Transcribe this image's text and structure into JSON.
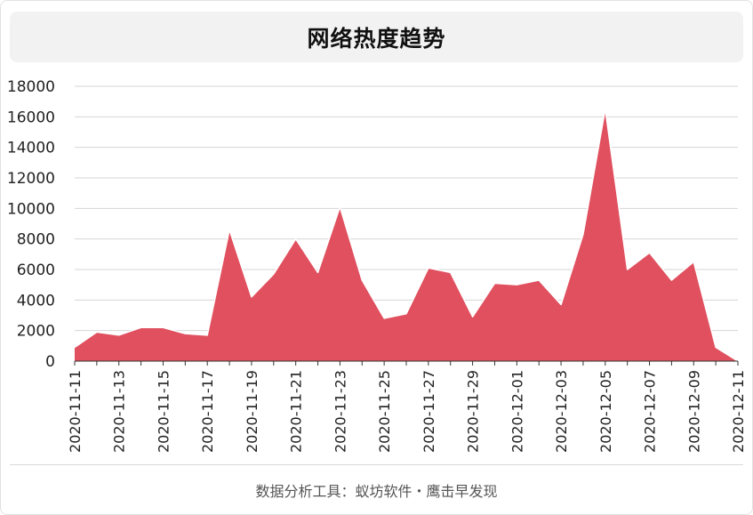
{
  "header": {
    "title": "网络热度趋势"
  },
  "footer": {
    "text": "数据分析工具：蚁坊软件・鹰击早发现"
  },
  "colors": {
    "area_fill": "#e0505f",
    "area_stroke": "#e0505f",
    "grid": "#d6d6d6",
    "axis_text": "#222222"
  },
  "chart_data": {
    "type": "area",
    "title": "网络热度趋势",
    "xlabel": "",
    "ylabel": "",
    "ylim": [
      0,
      18000
    ],
    "yticks": [
      0,
      2000,
      4000,
      6000,
      8000,
      10000,
      12000,
      14000,
      16000,
      18000
    ],
    "grid": true,
    "x": [
      "2020-11-11",
      "2020-11-12",
      "2020-11-13",
      "2020-11-14",
      "2020-11-15",
      "2020-11-16",
      "2020-11-17",
      "2020-11-18",
      "2020-11-19",
      "2020-11-20",
      "2020-11-21",
      "2020-11-22",
      "2020-11-23",
      "2020-11-24",
      "2020-11-25",
      "2020-11-26",
      "2020-11-27",
      "2020-11-28",
      "2020-11-29",
      "2020-11-30",
      "2020-12-01",
      "2020-12-02",
      "2020-12-03",
      "2020-12-04",
      "2020-12-05",
      "2020-12-06",
      "2020-12-07",
      "2020-12-08",
      "2020-12-09",
      "2020-12-10",
      "2020-12-11"
    ],
    "xtick_labels": [
      "2020-11-11",
      "2020-11-13",
      "2020-11-15",
      "2020-11-17",
      "2020-11-19",
      "2020-11-21",
      "2020-11-23",
      "2020-11-25",
      "2020-11-27",
      "2020-11-29",
      "2020-12-01",
      "2020-12-03",
      "2020-12-05",
      "2020-12-07",
      "2020-12-09",
      "2020-12-11"
    ],
    "series": [
      {
        "values": [
          900,
          1900,
          1700,
          2200,
          2200,
          1800,
          1700,
          8600,
          4200,
          5700,
          8000,
          5800,
          10100,
          5300,
          2800,
          3100,
          6100,
          5800,
          2900,
          5100,
          5000,
          5300,
          3700,
          8300,
          16500,
          6000,
          7100,
          5300,
          6500,
          900,
          0
        ]
      }
    ]
  }
}
